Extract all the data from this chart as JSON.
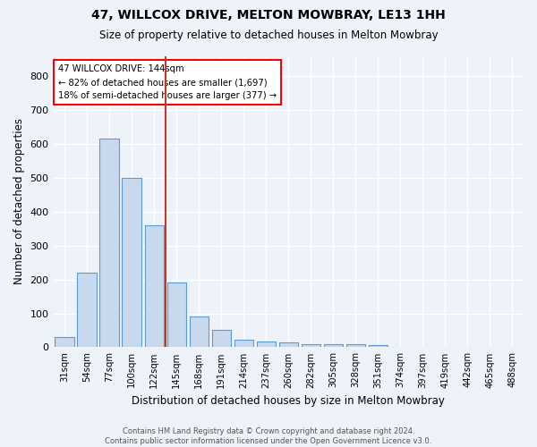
{
  "title": "47, WILLCOX DRIVE, MELTON MOWBRAY, LE13 1HH",
  "subtitle": "Size of property relative to detached houses in Melton Mowbray",
  "xlabel": "Distribution of detached houses by size in Melton Mowbray",
  "ylabel": "Number of detached properties",
  "footer_line1": "Contains HM Land Registry data © Crown copyright and database right 2024.",
  "footer_line2": "Contains public sector information licensed under the Open Government Licence v3.0.",
  "bin_labels": [
    "31sqm",
    "54sqm",
    "77sqm",
    "100sqm",
    "122sqm",
    "145sqm",
    "168sqm",
    "191sqm",
    "214sqm",
    "237sqm",
    "260sqm",
    "282sqm",
    "305sqm",
    "328sqm",
    "351sqm",
    "374sqm",
    "397sqm",
    "419sqm",
    "442sqm",
    "465sqm",
    "488sqm"
  ],
  "bar_values": [
    30,
    220,
    615,
    500,
    360,
    190,
    90,
    52,
    22,
    17,
    15,
    8,
    10,
    9,
    7,
    0,
    0,
    0,
    0,
    0,
    0
  ],
  "bar_color": "#c9d9ed",
  "bar_edge_color": "#5b9bd5",
  "property_line_label": "47 WILLCOX DRIVE: 144sqm",
  "annotation_line1": "← 82% of detached houses are smaller (1,697)",
  "annotation_line2": "18% of semi-detached houses are larger (377) →",
  "vline_color": "#c0392b",
  "ylim": [
    0,
    860
  ],
  "yticks": [
    0,
    100,
    200,
    300,
    400,
    500,
    600,
    700,
    800
  ],
  "background_color": "#eef2f9",
  "grid_color": "white",
  "num_bins": 21,
  "property_bin_index": 4
}
